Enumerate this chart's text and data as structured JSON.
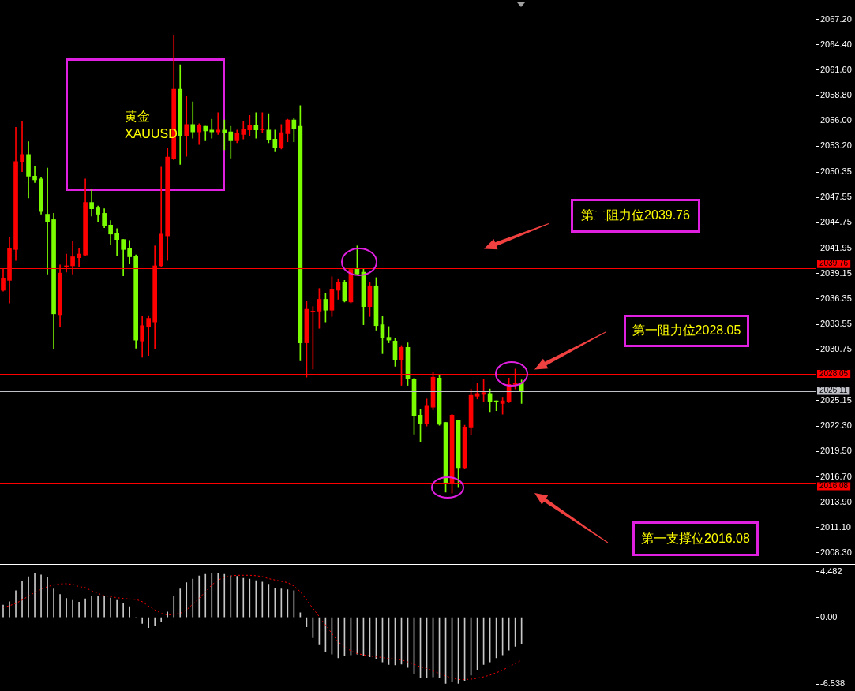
{
  "chart_data": [
    {
      "type": "candlestick",
      "title": "黄金",
      "subtitle": "XAUUSD",
      "categories": [
        null,
        null,
        null,
        null,
        null,
        null,
        null,
        null,
        null,
        null,
        null,
        null,
        null,
        null,
        null,
        null,
        null,
        null,
        null,
        null,
        null,
        null,
        null,
        null,
        null,
        null,
        null,
        null,
        null,
        null,
        null,
        null,
        null,
        null,
        null,
        null,
        null,
        null,
        null,
        null,
        null,
        null,
        null,
        null,
        null,
        null,
        null,
        null,
        null,
        null,
        null,
        null,
        null,
        null,
        null,
        null,
        null,
        null,
        null,
        null,
        null,
        null,
        null,
        null,
        null,
        null,
        null,
        null,
        null,
        null,
        null,
        null,
        null,
        null,
        null,
        null,
        null,
        null,
        null,
        null,
        null,
        null,
        null,
        null,
        null,
        null,
        null,
        null,
        null,
        null,
        null,
        null,
        null,
        null,
        null,
        null,
        null,
        null,
        null,
        null,
        null,
        null,
        null,
        null,
        null,
        null,
        null,
        null,
        null,
        null,
        null,
        null,
        null,
        null,
        null,
        null,
        null,
        null,
        null,
        null,
        null,
        null,
        null,
        null,
        null,
        null,
        null,
        null,
        null
      ],
      "ohlc": [
        [
          2037.3,
          2039.7,
          2037.2,
          2038.6
        ],
        [
          2038.4,
          2043.2,
          2035.9,
          2041.9
        ],
        [
          2041.8,
          2055.3,
          2040.6,
          2051.5
        ],
        [
          2051.5,
          2056.0,
          2050.4,
          2052.3
        ],
        [
          2052.3,
          2053.7,
          2047.5,
          2049.9
        ],
        [
          2049.9,
          2051.0,
          2049.2,
          2049.5
        ],
        [
          2049.6,
          2049.8,
          2045.7,
          2046.0
        ],
        [
          2045.7,
          2050.8,
          2039.1,
          2044.9
        ],
        [
          2045.1,
          2045.8,
          2030.8,
          2034.7
        ],
        [
          2034.6,
          2040.1,
          2033.3,
          2039.2
        ],
        [
          2039.9,
          2041.3,
          2039.3,
          2040.0
        ],
        [
          2040.0,
          2042.7,
          2039.1,
          2041.0
        ],
        [
          2040.9,
          2041.9,
          2039.9,
          2041.3
        ],
        [
          2041.2,
          2049.6,
          2041.1,
          2047.0
        ],
        [
          2047.0,
          2048.5,
          2045.5,
          2046.3
        ],
        [
          2046.4,
          2046.6,
          2044.9,
          2045.7
        ],
        [
          2045.8,
          2046.3,
          2044.2,
          2044.4
        ],
        [
          2044.5,
          2045.0,
          2042.3,
          2043.5
        ],
        [
          2043.6,
          2044.1,
          2041.1,
          2042.9
        ],
        [
          2042.9,
          2042.9,
          2038.9,
          2041.8
        ],
        [
          2041.9,
          2042.8,
          2040.2,
          2041.0
        ],
        [
          2041.1,
          2041.2,
          2030.9,
          2031.8
        ],
        [
          2031.7,
          2034.4,
          2029.9,
          2033.4
        ],
        [
          2033.3,
          2034.5,
          2030.1,
          2034.2
        ],
        [
          2033.8,
          2042.2,
          2030.8,
          2040.0
        ],
        [
          2040.0,
          2050.9,
          2039.9,
          2043.5
        ],
        [
          2043.3,
          2053.0,
          2040.6,
          2052.0
        ],
        [
          2051.8,
          2065.4,
          2051.7,
          2059.5
        ],
        [
          2059.5,
          2062.2,
          2051.2,
          2054.4
        ],
        [
          2054.3,
          2058.7,
          2052.1,
          2055.6
        ],
        [
          2055.6,
          2058.1,
          2054.1,
          2054.8
        ],
        [
          2054.8,
          2055.7,
          2053.4,
          2055.5
        ],
        [
          2055.4,
          2055.4,
          2053.8,
          2054.9
        ],
        [
          2055.0,
          2056.2,
          2054.1,
          2054.8
        ],
        [
          2054.8,
          2056.9,
          2054.5,
          2055.0
        ],
        [
          2055.0,
          2056.1,
          2052.8,
          2054.7
        ],
        [
          2054.8,
          2055.4,
          2051.9,
          2053.8
        ],
        [
          2053.8,
          2055.0,
          2053.6,
          2054.6
        ],
        [
          2054.5,
          2055.9,
          2054.0,
          2055.1
        ],
        [
          2055.0,
          2056.6,
          2054.4,
          2055.5
        ],
        [
          2055.5,
          2056.9,
          2054.1,
          2055.0
        ],
        [
          2055.0,
          2056.9,
          2054.7,
          2055.1
        ],
        [
          2055.0,
          2056.8,
          2053.6,
          2053.9
        ],
        [
          2054.0,
          2055.0,
          2052.6,
          2053.0
        ],
        [
          2053.0,
          2055.6,
          2052.9,
          2054.7
        ],
        [
          2054.6,
          2056.2,
          2053.7,
          2056.1
        ],
        [
          2056.1,
          2056.3,
          2053.7,
          2055.1
        ],
        [
          2055.4,
          2057.7,
          2029.5,
          2031.5
        ],
        [
          2031.5,
          2036.1,
          2027.7,
          2035.2
        ],
        [
          2034.9,
          2035.5,
          2028.6,
          2035.0
        ],
        [
          2035.0,
          2037.5,
          2033.1,
          2036.3
        ],
        [
          2036.3,
          2037.0,
          2033.8,
          2035.1
        ],
        [
          2035.1,
          2038.8,
          2034.4,
          2037.4
        ],
        [
          2037.3,
          2038.5,
          2036.3,
          2038.2
        ],
        [
          2038.2,
          2038.4,
          2036.0,
          2036.1
        ],
        [
          2036.0,
          2039.7,
          2035.9,
          2039.6
        ],
        [
          2039.7,
          2042.2,
          2039.0,
          2039.1
        ],
        [
          2039.3,
          2039.7,
          2033.5,
          2035.5
        ],
        [
          2035.5,
          2038.2,
          2034.4,
          2037.8
        ],
        [
          2037.8,
          2038.7,
          2032.9,
          2033.4
        ],
        [
          2033.5,
          2034.4,
          2030.3,
          2032.1
        ],
        [
          2032.1,
          2033.3,
          2031.5,
          2031.8
        ],
        [
          2031.7,
          2032.0,
          2028.9,
          2029.6
        ],
        [
          2029.6,
          2031.2,
          2026.8,
          2031.0
        ],
        [
          2031.0,
          2031.5,
          2026.8,
          2027.5
        ],
        [
          2027.5,
          2027.6,
          2021.4,
          2023.4
        ],
        [
          2023.5,
          2024.2,
          2020.6,
          2022.6
        ],
        [
          2022.6,
          2025.3,
          2022.3,
          2024.5
        ],
        [
          2024.4,
          2028.3,
          2024.1,
          2027.7
        ],
        [
          2027.6,
          2027.9,
          2022.4,
          2022.5
        ],
        [
          2022.7,
          2022.7,
          2015.0,
          2016.0
        ],
        [
          2016.0,
          2023.6,
          2014.9,
          2023.5
        ],
        [
          2022.9,
          2022.9,
          2015.5,
          2017.7
        ],
        [
          2017.7,
          2022.4,
          2017.6,
          2022.2
        ],
        [
          2022.2,
          2026.4,
          2021.3,
          2025.7
        ],
        [
          2025.6,
          2027.0,
          2025.3,
          2025.9
        ],
        [
          2025.8,
          2027.5,
          2025.0,
          2026.0
        ],
        [
          2025.9,
          2026.4,
          2023.9,
          2025.0
        ],
        [
          2025.1,
          2025.1,
          2024.0,
          2025.0
        ],
        [
          2024.8,
          2025.5,
          2023.6,
          2025.1
        ],
        [
          2025.0,
          2027.6,
          2024.9,
          2026.9
        ],
        [
          2026.9,
          2028.6,
          2026.4,
          2027.0
        ],
        [
          2027.0,
          2027.4,
          2024.8,
          2026.1
        ],
        null,
        null,
        null,
        null,
        null,
        null,
        null,
        null,
        null,
        null,
        null,
        null,
        null,
        null,
        null,
        null,
        null,
        null,
        null,
        null,
        null,
        null,
        null,
        null,
        null,
        null,
        null,
        null,
        null,
        null,
        null,
        null,
        null,
        null,
        null,
        null,
        null,
        null,
        null,
        null,
        null,
        null,
        null,
        null,
        null,
        null
      ],
      "colors": [
        "#ff0000",
        "#ff0000",
        "#ff0000",
        "#ff0000",
        "#7cfc00",
        "#7cfc00",
        "#7cfc00",
        "#7cfc00",
        "#7cfc00",
        "#ff0000",
        "#ff0000",
        "#ff0000",
        "#ff0000",
        "#ff0000",
        "#7cfc00",
        "#7cfc00",
        "#7cfc00",
        "#7cfc00",
        "#7cfc00",
        "#7cfc00",
        "#7cfc00",
        "#7cfc00",
        "#ff0000",
        "#ff0000",
        "#ff0000",
        "#ff0000",
        "#ff0000",
        "#ff0000",
        "#7cfc00",
        "#ff0000",
        "#7cfc00",
        "#ff0000",
        "#7cfc00",
        "#7cfc00",
        "#ff0000",
        "#7cfc00",
        "#7cfc00",
        "#ff0000",
        "#ff0000",
        "#ff0000",
        "#7cfc00",
        "#ff0000",
        "#7cfc00",
        "#7cfc00",
        "#ff0000",
        "#ff0000",
        "#7cfc00",
        "#7cfc00",
        "#ff0000",
        "#ff0000",
        "#ff0000",
        "#7cfc00",
        "#ff0000",
        "#ff0000",
        "#7cfc00",
        "#ff0000",
        "#7cfc00",
        "#7cfc00",
        "#ff0000",
        "#7cfc00",
        "#7cfc00",
        "#7cfc00",
        "#7cfc00",
        "#ff0000",
        "#7cfc00",
        "#7cfc00",
        "#7cfc00",
        "#ff0000",
        "#ff0000",
        "#7cfc00",
        "#7cfc00",
        "#ff0000",
        "#7cfc00",
        "#ff0000",
        "#ff0000",
        "#ff0000",
        "#ff0000",
        "#7cfc00",
        "#7cfc00",
        "#ff0000",
        "#ff0000",
        "#ff0000",
        "#7cfc00",
        null,
        null,
        null,
        null,
        null,
        null,
        null,
        null,
        null,
        null,
        null,
        null,
        null,
        null,
        null,
        null,
        null,
        null,
        null,
        null,
        null,
        null,
        null,
        null,
        null,
        null,
        null,
        null,
        null,
        null,
        null,
        null,
        null,
        null,
        null,
        null,
        null,
        null,
        null,
        null,
        null,
        null,
        null,
        null,
        null,
        null
      ],
      "ylim": [
        2008.0,
        2068.6
      ],
      "yticks": [
        {
          "value": 2008.3,
          "label": "2008.30"
        },
        {
          "value": 2011.1,
          "label": "2011.10"
        },
        {
          "value": 2013.9,
          "label": "2013.90"
        },
        {
          "value": 2016.7,
          "label": "2016.70"
        },
        {
          "value": 2019.5,
          "label": "2019.50"
        },
        {
          "value": 2022.3,
          "label": "2022.30"
        },
        {
          "value": 2025.15,
          "label": "2025.15"
        },
        {
          "value": 2030.75,
          "label": "2030.75"
        },
        {
          "value": 2033.55,
          "label": "2033.55"
        },
        {
          "value": 2036.35,
          "label": "2036.35"
        },
        {
          "value": 2039.15,
          "label": "2039.15"
        },
        {
          "value": 2041.95,
          "label": "2041.95"
        },
        {
          "value": 2044.75,
          "label": "2044.75"
        },
        {
          "value": 2047.55,
          "label": "2047.55"
        },
        {
          "value": 2050.35,
          "label": "2050.35"
        },
        {
          "value": 2053.2,
          "label": "2053.20"
        },
        {
          "value": 2056,
          "label": "2056.00"
        },
        {
          "value": 2058.8,
          "label": "2058.80"
        },
        {
          "value": 2061.6,
          "label": "2061.60"
        },
        {
          "value": 2064.4,
          "label": "2064.40"
        },
        {
          "value": 2067.2,
          "label": "2067.20"
        }
      ],
      "ref_lines": [
        {
          "axis": "y",
          "value": 2039.76,
          "label": "2039.76",
          "color": "#ff0000"
        },
        {
          "axis": "y",
          "value": 2028.05,
          "label": "2028.05",
          "color": "#ff0000"
        },
        {
          "axis": "y",
          "value": 2026.11,
          "label": "2026.11",
          "color": "#c0c0c8"
        },
        {
          "axis": "y",
          "value": 2016.08,
          "label": "2016.08",
          "color": "#ff0000"
        }
      ],
      "annotations": [
        "第二阻力位2039.76",
        "第一阻力位2028.05",
        "第一支撑位2016.08"
      ]
    },
    {
      "type": "bar",
      "line_style": "dotted",
      "marker": "none",
      "categories": [
        null,
        null,
        null,
        null,
        null,
        null,
        null,
        null,
        null,
        null,
        null,
        null,
        null,
        null,
        null,
        null,
        null,
        null,
        null,
        null,
        null,
        null,
        null,
        null,
        null,
        null,
        null,
        null,
        null,
        null,
        null,
        null,
        null,
        null,
        null,
        null,
        null,
        null,
        null,
        null,
        null,
        null,
        null,
        null,
        null,
        null,
        null,
        null,
        null,
        null,
        null,
        null,
        null,
        null,
        null,
        null,
        null,
        null,
        null,
        null,
        null,
        null,
        null,
        null,
        null,
        null,
        null,
        null,
        null,
        null,
        null,
        null,
        null,
        null,
        null,
        null,
        null,
        null,
        null,
        null,
        null,
        null,
        null,
        null,
        null,
        null,
        null,
        null,
        null,
        null,
        null,
        null,
        null,
        null,
        null,
        null,
        null,
        null,
        null,
        null,
        null,
        null,
        null,
        null,
        null,
        null,
        null,
        null,
        null,
        null,
        null,
        null,
        null,
        null,
        null,
        null,
        null,
        null,
        null,
        null,
        null,
        null,
        null,
        null,
        null,
        null,
        null,
        null,
        null
      ],
      "ylim": [
        -6.538,
        4.482
      ],
      "yticks": [
        -6.538,
        {
          "value": 0,
          "label": "0.00"
        },
        4.482
      ],
      "series": [
        {
          "type": "bar",
          "color": "#c8c8c8",
          "values": [
            1.21,
            1.54,
            2.61,
            3.53,
            3.99,
            4.28,
            4.15,
            3.89,
            2.78,
            2.25,
            1.86,
            1.67,
            1.5,
            1.83,
            2.03,
            2.12,
            2.03,
            1.9,
            1.67,
            1.34,
            1.05,
            -0.03,
            -0.59,
            -1.01,
            -0.85,
            -0.42,
            0.52,
            2.03,
            2.78,
            3.4,
            3.76,
            4.05,
            4.22,
            4.28,
            4.28,
            4.22,
            4.08,
            4.02,
            3.82,
            3.76,
            3.59,
            3.46,
            3.24,
            2.84,
            2.78,
            2.71,
            2.61,
            0.46,
            -0.92,
            -1.99,
            -2.68,
            -3.37,
            -3.59,
            -3.95,
            -3.73,
            -3.66,
            -3.59,
            -3.73,
            -3.86,
            -4.08,
            -4.35,
            -4.61,
            -4.64,
            -4.58,
            -4.9,
            -5.49,
            -5.92,
            -5.95,
            -5.82,
            -5.88,
            -6.47,
            -6.31,
            -6.47,
            -6.18,
            -5.65,
            -5.16,
            -4.61,
            -4.35,
            -3.95,
            -3.66,
            -3.2,
            -2.84,
            -2.55,
            null,
            null,
            null,
            null,
            null,
            null,
            null,
            null,
            null,
            null,
            null,
            null,
            null,
            null,
            null,
            null,
            null,
            null,
            null,
            null,
            null,
            null,
            null,
            null,
            null,
            null,
            null,
            null,
            null,
            null,
            null,
            null,
            null,
            null,
            null,
            null,
            null,
            null,
            null,
            null,
            null,
            null,
            null,
            null,
            null,
            null
          ]
        },
        {
          "type": "line",
          "color": "#ff0000",
          "values": [
            0.98,
            1.14,
            1.37,
            1.7,
            2.09,
            2.42,
            2.75,
            3.01,
            3.17,
            3.27,
            3.3,
            3.24,
            3.01,
            2.91,
            2.61,
            2.35,
            2.12,
            2.03,
            1.93,
            1.86,
            1.8,
            1.76,
            1.54,
            1.11,
            0.72,
            0.39,
            0.23,
            0.29,
            0.39,
            0.72,
            1.31,
            1.86,
            2.52,
            3.17,
            3.66,
            3.92,
            4.05,
            4.12,
            4.12,
            4.12,
            4.08,
            3.99,
            3.79,
            3.66,
            3.53,
            3.4,
            3.07,
            2.52,
            1.7,
            0.88,
            0.07,
            -0.75,
            -1.57,
            -2.39,
            -2.88,
            -3.27,
            -3.53,
            -3.66,
            -3.76,
            -3.86,
            -3.92,
            -4.02,
            -4.08,
            -4.15,
            -4.35,
            -4.58,
            -4.84,
            -5.0,
            -5.23,
            -5.49,
            -5.72,
            -5.95,
            -6.08,
            -6.08,
            -6.05,
            -5.95,
            -5.82,
            -5.65,
            -5.42,
            -5.16,
            -4.84,
            -4.51,
            -4.18,
            null,
            null,
            null,
            null,
            null,
            null,
            null,
            null,
            null,
            null,
            null,
            null,
            null,
            null,
            null,
            null,
            null,
            null,
            null,
            null,
            null,
            null,
            null,
            null,
            null,
            null,
            null,
            null,
            null,
            null,
            null,
            null,
            null,
            null,
            null,
            null,
            null,
            null,
            null,
            null,
            null,
            null,
            null,
            null,
            null,
            null
          ]
        }
      ]
    }
  ]
}
